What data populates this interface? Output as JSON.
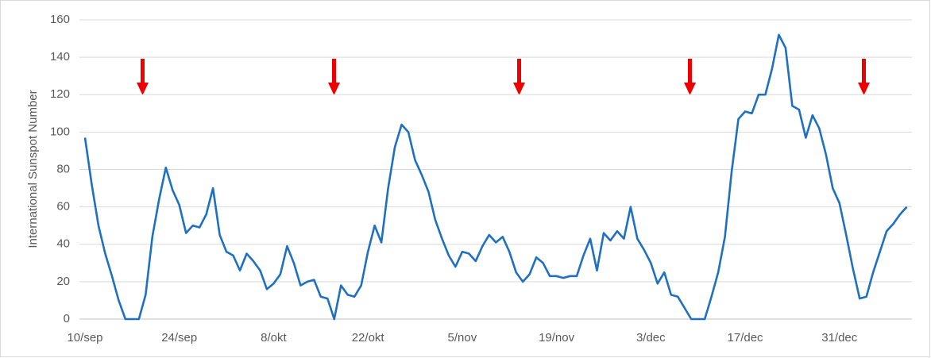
{
  "chart_data": {
    "type": "line",
    "y_label": "International Sunspot Number",
    "categories": [
      "10/sep",
      null,
      null,
      null,
      null,
      null,
      null,
      null,
      null,
      null,
      null,
      null,
      null,
      null,
      "24/sep",
      null,
      null,
      null,
      null,
      null,
      null,
      null,
      null,
      null,
      null,
      null,
      null,
      null,
      "8/okt",
      null,
      null,
      null,
      null,
      null,
      null,
      null,
      null,
      null,
      null,
      null,
      null,
      null,
      "22/okt",
      null,
      null,
      null,
      null,
      null,
      null,
      null,
      null,
      null,
      null,
      null,
      null,
      null,
      "5/nov",
      null,
      null,
      null,
      null,
      null,
      null,
      null,
      null,
      null,
      null,
      null,
      null,
      null,
      "19/nov",
      null,
      null,
      null,
      null,
      null,
      null,
      null,
      null,
      null,
      null,
      null,
      null,
      null,
      "3/dec",
      null,
      null,
      null,
      null,
      null,
      null,
      null,
      null,
      null,
      null,
      null,
      null,
      null,
      "17/dec",
      null,
      null,
      null,
      null,
      null,
      null,
      null,
      null,
      null,
      null,
      null,
      null,
      null,
      "31/dec",
      null,
      null,
      null,
      null,
      null,
      null,
      null,
      null,
      null,
      null
    ],
    "series": [
      {
        "name": "International Sunspot Number",
        "color": "#1f70c1",
        "values": [
          97,
          72,
          50,
          35,
          23,
          10,
          0,
          0,
          0,
          13,
          44,
          64,
          81,
          69,
          61,
          46,
          50,
          49,
          56,
          70,
          45,
          36,
          34,
          26,
          35,
          31,
          26,
          16,
          19,
          24,
          39,
          30,
          18,
          20,
          21,
          12,
          11,
          0,
          18,
          13,
          12,
          18,
          36,
          50,
          41,
          70,
          92,
          104,
          100,
          85,
          77,
          68,
          53,
          43,
          34,
          28,
          36,
          35,
          31,
          39,
          45,
          41,
          44,
          36,
          25,
          20,
          24,
          33,
          30,
          23,
          23,
          22,
          23,
          23,
          34,
          43,
          26,
          46,
          42,
          47,
          43,
          60,
          43,
          37,
          30,
          19,
          25,
          13,
          12,
          6,
          0,
          0,
          0,
          12,
          25,
          44,
          79,
          107,
          111,
          110,
          120,
          120,
          134,
          152,
          145,
          114,
          112,
          97,
          109,
          102,
          88,
          70,
          62,
          45,
          27,
          11,
          12,
          25,
          36,
          47,
          51,
          56,
          60
        ]
      }
    ],
    "ylim": [
      0,
      160
    ],
    "yticks": [
      0,
      20,
      40,
      60,
      80,
      100,
      120,
      140,
      160
    ],
    "grid": true
  }
}
